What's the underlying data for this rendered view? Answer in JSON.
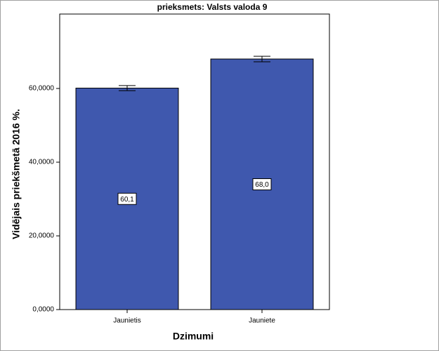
{
  "chart_data": {
    "type": "bar",
    "title": "prieksmets: Valsts valoda 9",
    "x_label": "Dzimumi",
    "y_label": "Vidējais priekšmetā 2016 %.",
    "categories": [
      "Jaunietis",
      "Jauniete"
    ],
    "values": [
      60.1,
      68.0
    ],
    "value_labels": [
      "60,1",
      "68,0"
    ],
    "errors": [
      0.7,
      0.75
    ],
    "color": "#3f58ae",
    "ylim": [
      0,
      80.2
    ],
    "yticks": [
      {
        "value": 0,
        "label": "0,0000"
      },
      {
        "value": 20,
        "label": "20,0000"
      },
      {
        "value": 40,
        "label": "40,0000"
      },
      {
        "value": 60,
        "label": "60,0000"
      }
    ]
  }
}
